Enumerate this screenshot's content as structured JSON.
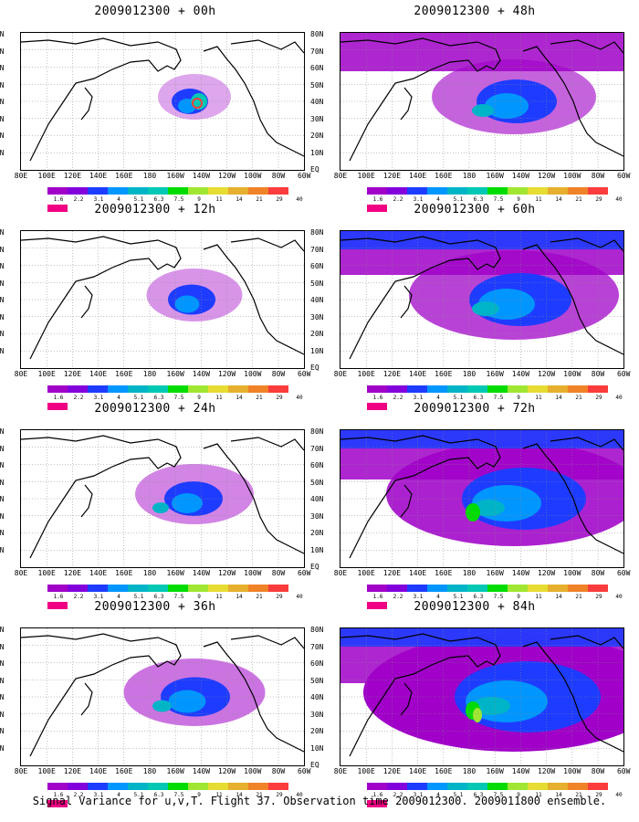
{
  "panels": [
    {
      "title": "2009012300 + 00h"
    },
    {
      "title": "2009012300 + 48h"
    },
    {
      "title": "2009012300 + 12h"
    },
    {
      "title": "2009012300 + 60h"
    },
    {
      "title": "2009012300 + 24h"
    },
    {
      "title": "2009012300 + 72h"
    },
    {
      "title": "2009012300 + 36h"
    },
    {
      "title": "2009012300 + 84h"
    }
  ],
  "lat_labels": [
    "80N",
    "70N",
    "60N",
    "50N",
    "40N",
    "30N",
    "20N",
    "10N",
    "EQ"
  ],
  "lon_labels": [
    "80E",
    "100E",
    "120E",
    "140E",
    "160E",
    "180",
    "160W",
    "140W",
    "120W",
    "100W",
    "80W",
    "60W"
  ],
  "colorbar": {
    "labels": [
      "1.6",
      "2.2",
      "3.1",
      "4",
      "5.1",
      "6.3",
      "7.5",
      "9",
      "11",
      "14",
      "21",
      "29",
      "40"
    ],
    "colors": [
      "#a000c8",
      "#8200dc",
      "#1e3cff",
      "#0096ff",
      "#00b4c8",
      "#00c8b4",
      "#00dc00",
      "#a0e632",
      "#e6dc32",
      "#e6af2d",
      "#f08228",
      "#fa3c3c",
      "#f00082"
    ]
  },
  "footer": "Signal Variance for u,v,T. Flight 37. Observation time 2009012300. 2009011800 ensemble."
}
